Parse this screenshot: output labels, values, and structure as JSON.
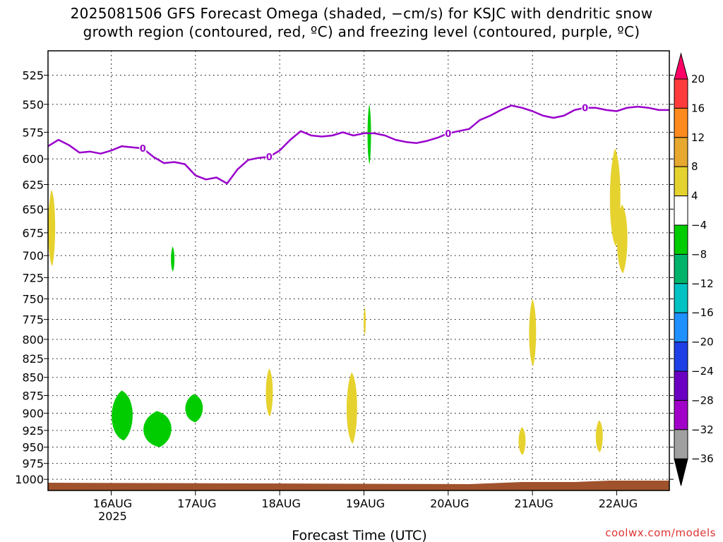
{
  "title": {
    "line1": "2025081506 GFS Forecast Omega (shaded, −cm/s) for KSJC with dendritic snow",
    "line2": "growth region (contoured, red, ºC) and freezing level (contoured, purple, ºC)"
  },
  "credit": "coolwx.com/models",
  "colors": {
    "freezing_level": "#9900cc",
    "ground": "#a0522d",
    "omega_green": "#00cc00",
    "omega_yellow": "#e6d22e"
  },
  "chart_data": {
    "type": "heatmap",
    "xlabel": "Forecast Time (UTC)",
    "xlim_hours": [
      0,
      177
    ],
    "x_ticks": [
      {
        "hour": 18,
        "label": "16AUG",
        "sub": "2025"
      },
      {
        "hour": 42,
        "label": "17AUG",
        "sub": ""
      },
      {
        "hour": 66,
        "label": "18AUG",
        "sub": ""
      },
      {
        "hour": 90,
        "label": "19AUG",
        "sub": ""
      },
      {
        "hour": 114,
        "label": "20AUG",
        "sub": ""
      },
      {
        "hour": 138,
        "label": "21AUG",
        "sub": ""
      },
      {
        "hour": 162,
        "label": "22AUG",
        "sub": ""
      }
    ],
    "y_ticks": [
      "525",
      "550",
      "575",
      "600",
      "625",
      "650",
      "675",
      "700",
      "725",
      "750",
      "775",
      "800",
      "825",
      "850",
      "875",
      "900",
      "925",
      "950",
      "975",
      "1000"
    ],
    "y_scale": "log-pressure (hPa)",
    "ylim_hpa": [
      1018,
      505
    ],
    "grid": true,
    "colorbar": {
      "labels": [
        "20",
        "16",
        "12",
        "8",
        "4",
        "−4",
        "−8",
        "−12",
        "−16",
        "−20",
        "−24",
        "−28",
        "−32",
        "−36"
      ],
      "colors": [
        "#ff0066",
        "#ff3b3b",
        "#ff8a1e",
        "#e6a82e",
        "#e6d22e",
        "#ffffff",
        "#00cc00",
        "#00b36b",
        "#00c2c2",
        "#1e90ff",
        "#1f3fe6",
        "#6b00c2",
        "#a000c8",
        "#a0a0a0"
      ]
    },
    "freezing_level": {
      "name": "0",
      "hours": [
        0,
        3,
        6,
        9,
        12,
        15,
        18,
        21,
        24,
        27,
        30,
        33,
        36,
        39,
        42,
        45,
        48,
        51,
        54,
        57,
        60,
        63,
        66,
        69,
        72,
        75,
        78,
        81,
        84,
        87,
        90,
        93,
        96,
        99,
        102,
        105,
        108,
        111,
        114,
        117,
        120,
        123,
        126,
        129,
        132,
        135,
        138,
        141,
        144,
        147,
        150,
        153,
        156,
        159,
        162,
        165,
        168,
        171,
        174,
        177
      ],
      "pressure": [
        588,
        582,
        587,
        594,
        593,
        595,
        592,
        588,
        589,
        590,
        598,
        604,
        603,
        605,
        616,
        620,
        618,
        624,
        610,
        601,
        599,
        598,
        592,
        582,
        574,
        578,
        579,
        578,
        575,
        578,
        576,
        576,
        578,
        582,
        584,
        585,
        583,
        580,
        576,
        574,
        572,
        564,
        560,
        555,
        551,
        553,
        556,
        560,
        562,
        560,
        555,
        553,
        553,
        555,
        556,
        553,
        552,
        553,
        555,
        555
      ]
    },
    "omega_regions": [
      {
        "value": "-4 to -8",
        "color": "green",
        "hours": [
          91,
          92
        ],
        "pressure": [
          550,
          605
        ]
      },
      {
        "value": "-4 to -8",
        "color": "green",
        "hours": [
          35,
          36
        ],
        "pressure": [
          690,
          718
        ]
      },
      {
        "value": "-4 to -8",
        "color": "green",
        "hours": [
          18,
          24
        ],
        "pressure": [
          868,
          940
        ]
      },
      {
        "value": "-4 to -8",
        "color": "green",
        "hours": [
          27,
          35
        ],
        "pressure": [
          897,
          950
        ]
      },
      {
        "value": "-4 to -8",
        "color": "green",
        "hours": [
          39,
          44
        ],
        "pressure": [
          873,
          913
        ]
      },
      {
        "value": "4 to 8",
        "color": "yellow",
        "hours": [
          0,
          2
        ],
        "pressure": [
          630,
          712
        ]
      },
      {
        "value": "4 to 8",
        "color": "yellow",
        "hours": [
          160,
          163
        ],
        "pressure": [
          590,
          690
        ]
      },
      {
        "value": "4 to 8",
        "color": "yellow",
        "hours": [
          162,
          165
        ],
        "pressure": [
          645,
          720
        ]
      },
      {
        "value": "4 to 8",
        "color": "yellow",
        "hours": [
          137,
          139
        ],
        "pressure": [
          750,
          835
        ]
      },
      {
        "value": "4 to 8",
        "color": "yellow",
        "hours": [
          62,
          64
        ],
        "pressure": [
          838,
          905
        ]
      },
      {
        "value": "4 to 8",
        "color": "yellow",
        "hours": [
          85,
          88
        ],
        "pressure": [
          843,
          945
        ]
      },
      {
        "value": "4 to 8",
        "color": "yellow",
        "hours": [
          134,
          136
        ],
        "pressure": [
          920,
          962
        ]
      },
      {
        "value": "4 to 8",
        "color": "yellow",
        "hours": [
          156,
          158
        ],
        "pressure": [
          910,
          958
        ]
      },
      {
        "value": "4 to 8",
        "color": "yellow",
        "hours": [
          90,
          90.4
        ],
        "pressure": [
          760,
          795
        ]
      }
    ]
  }
}
